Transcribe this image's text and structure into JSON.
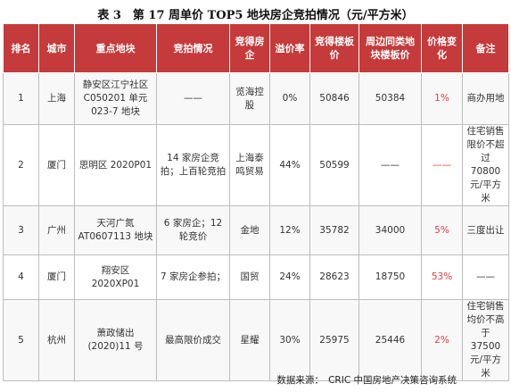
{
  "title": "表 3　第 17 周单价 TOP5 地块房企竞拍情况（元/平方米）",
  "headers": [
    "排名",
    "城市",
    "重点地块",
    "竞拍情况",
    "竞得房企",
    "溢价率",
    "竞得楼板价",
    "周边同类地块楼板价",
    "价格变化",
    "备注"
  ],
  "rows": [
    {
      "rank": "1",
      "city": "上海",
      "plot": "静安区江宁社区C050201 单元 023-7 地块",
      "auction": "——",
      "company": "览海控股",
      "premium": "0%",
      "price": "50846",
      "nearby": "50384",
      "change": "1%",
      "note": "商办用地"
    },
    {
      "rank": "2",
      "city": "厦门",
      "plot": "思明区 2020P01",
      "auction": "14 家房企竞拍；上百轮竞拍",
      "company": "上海泰鸣贸易",
      "premium": "44%",
      "price": "50599",
      "nearby": "——",
      "change": "——",
      "note": "住宅销售限价不超过 70800 元/平方米"
    },
    {
      "rank": "3",
      "city": "广州",
      "plot": "天河广氮AT0607113 地块",
      "auction": "6 家房企；12 轮竞价",
      "company": "金地",
      "premium": "12%",
      "price": "35782",
      "nearby": "34000",
      "change": "5%",
      "note": "三度出让"
    },
    {
      "rank": "4",
      "city": "厦门",
      "plot": "翔安区2020XP01",
      "auction": "7 家房企参拍；",
      "company": "国贸",
      "premium": "24%",
      "price": "28623",
      "nearby": "18750",
      "change": "53%",
      "note": "——"
    },
    {
      "rank": "5",
      "city": "杭州",
      "plot": "萧政储出(2020)11 号",
      "auction": "最高限价成交",
      "company": "星耀",
      "premium": "30%",
      "price": "25975",
      "nearby": "25446",
      "change": "2%",
      "note": "住宅销售均价不高于 37500 元/平方米"
    }
  ],
  "source": "数据来源：　CRIC 中国房地产决策咨询系统"
}
